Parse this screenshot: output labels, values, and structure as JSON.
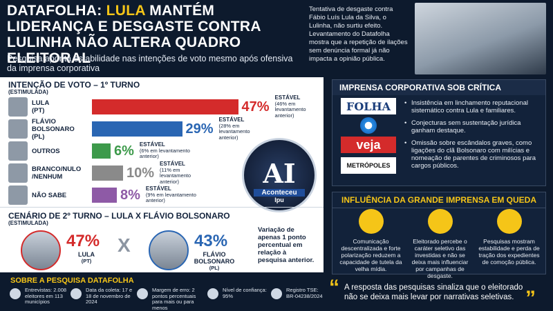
{
  "header": {
    "title_parts": [
      "DATAFOLHA: ",
      "LULA",
      " MANTÉM LIDERANÇA E DESGASTE CONTRA LULINHA NÃO ALTERA QUADRO ELEITORAL"
    ],
    "subtitle": "Pesquisa aponta estabilidade nas intenções de voto mesmo após ofensiva da imprensa corporativa",
    "intro": "Tentativa de desgaste contra Fábio Luís Lula da Silva, o Lulinha, não surtiu efeito. Levantamento do Datafolha mostra que a repetição de ilações sem denúncia formal já não impacta a opinião pública."
  },
  "first_round": {
    "title": "INTENÇÃO DE VOTO – 1º TURNO",
    "subtitle": "(ESTIMULADA)",
    "rows": [
      {
        "name": "LULA",
        "party": "(PT)",
        "value": 47,
        "value_label": "47%",
        "color": "#d42b2b",
        "status": "ESTÁVEL",
        "note": "(46% em levantamento anterior)"
      },
      {
        "name": "FLÁVIO BOLSONARO",
        "party": "(PL)",
        "value": 29,
        "value_label": "29%",
        "color": "#2a66b3",
        "status": "ESTÁVEL",
        "note": "(28% em levantamento anterior)"
      },
      {
        "name": "OUTROS",
        "value": 6,
        "value_label": "6%",
        "color": "#3d9a4b",
        "status": "ESTÁVEL",
        "note": "(6% em levantamento anterior)"
      },
      {
        "name": "BRANCO/NULO /NENHUM",
        "value": 10,
        "value_label": "10%",
        "color": "#8a8a8a",
        "status": "ESTÁVEL",
        "note": "(11% em levantamento anterior)"
      },
      {
        "name": "NÃO SABE",
        "value": 8,
        "value_label": "8%",
        "color": "#8e5aa6",
        "status": "ESTÁVEL",
        "note": "(9% em levantamento anterior)"
      }
    ]
  },
  "second_round": {
    "title": "CENÁRIO DE 2º TURNO – LULA X FLÁVIO BOLSONARO",
    "subtitle": "(ESTIMULADA)",
    "candidates": [
      {
        "name": "LULA",
        "party": "(PT)",
        "value": 47,
        "value_label": "47%",
        "color": "#d42b2b"
      },
      {
        "name": "FLÁVIO BOLSONARO",
        "party": "(PL)",
        "value": 43,
        "value_label": "43%",
        "color": "#2a66b3"
      }
    ],
    "versus": "X",
    "note": "Variação de apenas 1 ponto percentual em relação à pesquisa anterior."
  },
  "badge": {
    "letters": "AI",
    "name": "Aconteceu",
    "city": "Ipu"
  },
  "press_panel": {
    "title": "IMPRENSA CORPORATIVA SOB CRÍTICA",
    "logos": [
      "FOLHA",
      "veja",
      "METRÓPOLES"
    ],
    "bullets": [
      "Insistência em linchamento reputacional sistemático contra Lula e familiares.",
      "Conjecturas sem sustentação jurídica ganham destaque.",
      "Omissão sobre escândalos graves, como ligações do clã Bolsonaro com milícias e nomeação de parentes de criminosos para cargos públicos."
    ]
  },
  "influence_panel": {
    "title": "INFLUÊNCIA DA GRANDE IMPRENSA EM QUEDA",
    "items": [
      "Comunicação descentralizada e forte polarização reduzem a capacidade de tutela da velha mídia.",
      "Eleitorado percebe o caráter seletivo das investidas e não se deixa mais influenciar por campanhas de desgaste.",
      "Pesquisas mostram estabilidade e perda de tração dos expedientes de comoção pública."
    ]
  },
  "quote": "A resposta das pesquisas sinaliza que o eleitorado não se deixa mais levar por narrativas seletivas.",
  "footer": {
    "title": "SOBRE A PESQUISA DATAFOLHA",
    "items": [
      "Entrevistas: 2.008 eleitores em 113 municípios",
      "Data da coleta: 17 e 18 de novembro de 2024",
      "Margem de erro: 2 pontos percentuais para mais ou para menos",
      "Nível de confiança: 95%",
      "Registro TSE: BR-04238/2024"
    ]
  }
}
